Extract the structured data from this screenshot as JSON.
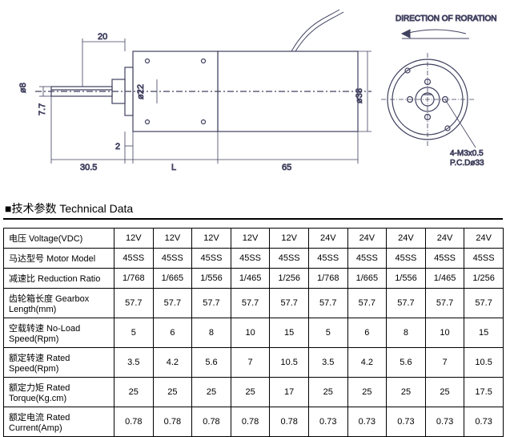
{
  "diagram": {
    "direction_label": "DIRECTION OF RORATION",
    "dims": {
      "d8": "ø8",
      "d7_7": "7.7",
      "d20": "20",
      "d22": "ø22",
      "d38": "ø38",
      "d2": "2",
      "d30_5": "30.5",
      "L": "L",
      "d65": "65",
      "screw": "4-M3x0.5",
      "pcd": "P.C.Dø33"
    },
    "colors": {
      "stroke": "#404060",
      "fill": "#ffffff",
      "hatch": "#404060"
    }
  },
  "section_title_cn": "■技术参数",
  "section_title_en": " Technical Data",
  "table": {
    "rows": [
      {
        "h": "电压 Voltage(VDC)",
        "v": [
          "12V",
          "12V",
          "12V",
          "12V",
          "12V",
          "24V",
          "24V",
          "24V",
          "24V",
          "24V"
        ]
      },
      {
        "h": "马达型号 Motor Model",
        "v": [
          "45SS",
          "45SS",
          "45SS",
          "45SS",
          "45SS",
          "45SS",
          "45SS",
          "45SS",
          "45SS",
          "45SS"
        ]
      },
      {
        "h": "减速比 Reduction Ratio",
        "v": [
          "1/768",
          "1/665",
          "1/556",
          "1/465",
          "1/256",
          "1/768",
          "1/665",
          "1/556",
          "1/465",
          "1/256"
        ]
      },
      {
        "h": "齿轮箱长度 Gearbox Length(mm)",
        "v": [
          "57.7",
          "57.7",
          "57.7",
          "57.7",
          "57.7",
          "57.7",
          "57.7",
          "57.7",
          "57.7",
          "57.7"
        ]
      },
      {
        "h": "空载转速 No-Load Speed(Rpm)",
        "v": [
          "5",
          "6",
          "8",
          "10",
          "15",
          "5",
          "6",
          "8",
          "10",
          "15"
        ]
      },
      {
        "h": "额定转速 Rated Speed(Rpm)",
        "v": [
          "3.5",
          "4.2",
          "5.6",
          "7",
          "10.5",
          "3.5",
          "4.2",
          "5.6",
          "7",
          "10.5"
        ]
      },
      {
        "h": "额定力矩 Rated Torque(Kg.cm)",
        "v": [
          "25",
          "25",
          "25",
          "25",
          "17",
          "25",
          "25",
          "25",
          "25",
          "17.5"
        ]
      },
      {
        "h": "额定电流 Rated Current(Amp)",
        "v": [
          "0.78",
          "0.78",
          "0.78",
          "0.78",
          "0.78",
          "0.73",
          "0.73",
          "0.73",
          "0.73",
          "0.73"
        ]
      }
    ]
  }
}
